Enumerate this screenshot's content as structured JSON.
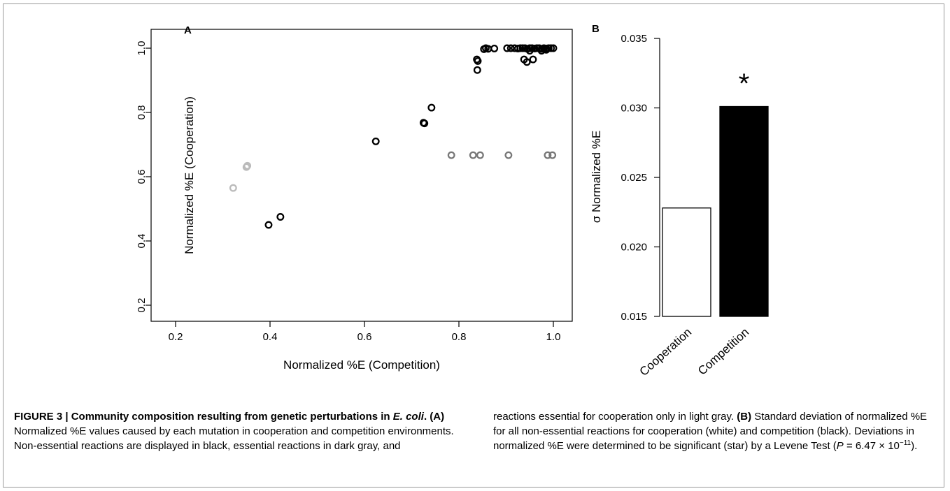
{
  "chart_data": [
    {
      "type": "scatter",
      "panel_label": "A",
      "xlabel": "Normalized %E (Competition)",
      "ylabel": "Normalized %E (Cooperation)",
      "xlim": [
        0.2,
        1.0
      ],
      "ylim": [
        0.2,
        1.0
      ],
      "xticks": [
        "0.2",
        "0.4",
        "0.6",
        "0.8",
        "1.0"
      ],
      "yticks": [
        "0.2",
        "0.4",
        "0.6",
        "0.8",
        "1.0"
      ],
      "series": [
        {
          "color": "#000000",
          "x": [
            0.397,
            0.422,
            0.624,
            0.725,
            0.727,
            0.742,
            0.838,
            0.839,
            0.84,
            0.853,
            0.857,
            0.862,
            0.875,
            0.902,
            0.91,
            0.918,
            0.925,
            0.93,
            0.935,
            0.94,
            0.945,
            0.95,
            0.955,
            0.96,
            0.965,
            0.97,
            0.975,
            0.98,
            0.985,
            0.99,
            0.995,
            1.0,
            0.944,
            0.957,
            0.938,
            0.95,
            0.985,
            0.975
          ],
          "y": [
            0.45,
            0.475,
            0.71,
            0.768,
            0.766,
            0.815,
            0.965,
            0.932,
            0.96,
            0.997,
            1.0,
            0.998,
            0.999,
            1.0,
            1.0,
            1.0,
            0.999,
            1.0,
            1.0,
            1.0,
            0.998,
            1.0,
            1.0,
            0.999,
            1.0,
            1.0,
            0.998,
            1.0,
            0.999,
            1.0,
            1.0,
            1.0,
            0.957,
            0.965,
            0.965,
            0.992,
            0.995,
            0.992
          ]
        },
        {
          "color": "#777777",
          "x": [
            0.784,
            0.83,
            0.845,
            0.905,
            0.988,
            0.998
          ],
          "y": [
            0.667,
            0.667,
            0.667,
            0.667,
            0.667,
            0.667
          ]
        },
        {
          "color": "#bbbbbb",
          "x": [
            0.322,
            0.35,
            0.352
          ],
          "y": [
            0.565,
            0.63,
            0.634
          ]
        }
      ]
    },
    {
      "type": "bar",
      "panel_label": "B",
      "categories": [
        "Cooperation",
        "Competition"
      ],
      "values": [
        0.0228,
        0.0301
      ],
      "colors": [
        "#ffffff",
        "#000000"
      ],
      "ylabel": "σ Normalized %E",
      "ylim": [
        0.015,
        0.035
      ],
      "yticks": [
        "0.015",
        "0.020",
        "0.025",
        "0.030",
        "0.035"
      ],
      "annotation": "*"
    }
  ],
  "caption": {
    "title": "FIGURE 3 | Community composition resulting from genetic perturbations in ",
    "title_italic": "E. coli",
    "title_end": ".",
    "a_label": " (A)",
    "a_text": " Normalized %E values caused by each mutation in cooperation and competition environments. Non-essential reactions are displayed in black, essential reactions in dark gray, and",
    "right_text_1": "reactions essential for cooperation only in light gray.",
    "b_label": " (B)",
    "b_text": " Standard deviation of normalized %E for all non-essential reactions for cooperation (white) and competition (black). Deviations in normalized %E were determined to be significant (star) by a Levene Test (",
    "p_symbol": "P",
    "p_value": " = 6.47 × 10",
    "p_exp": "−11",
    "p_end": ")."
  }
}
